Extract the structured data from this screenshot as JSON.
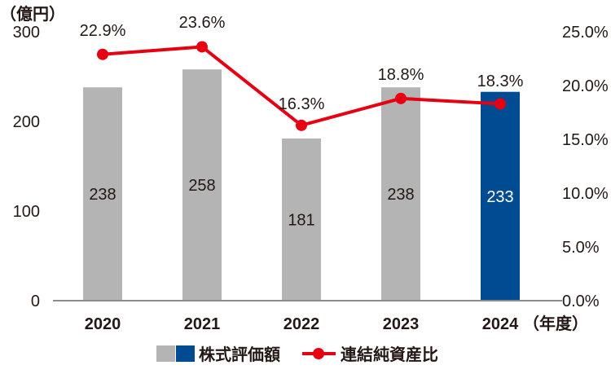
{
  "chart_data": {
    "type": "bar+line",
    "categories": [
      "2020",
      "2021",
      "2022",
      "2023",
      "2024"
    ],
    "series": [
      {
        "name": "株式評価額",
        "type": "bar",
        "axis": "left",
        "values": [
          238,
          258,
          181,
          238,
          233
        ],
        "colors": [
          "#b4b4b4",
          "#b4b4b4",
          "#b4b4b4",
          "#b4b4b4",
          "#004b91"
        ],
        "label_colors": [
          "#231815",
          "#231815",
          "#231815",
          "#231815",
          "#ffffff"
        ]
      },
      {
        "name": "連結純資産比",
        "type": "line",
        "axis": "right",
        "values": [
          22.9,
          23.6,
          16.3,
          18.8,
          18.3
        ],
        "labels": [
          "22.9%",
          "23.6%",
          "16.3%",
          "18.8%",
          "18.3%"
        ],
        "color": "#e60012"
      }
    ],
    "left_axis": {
      "unit_label": "（億円）",
      "ticks": [
        0,
        100,
        200,
        300
      ],
      "ylim": [
        0,
        300
      ]
    },
    "right_axis": {
      "ticks": [
        "0.0%",
        "5.0%",
        "10.0%",
        "15.0%",
        "20.0%",
        "25.0%"
      ],
      "ylim": [
        0,
        25
      ]
    },
    "x_axis": {
      "unit_label": "（年度）"
    },
    "legend": {
      "position": "bottom",
      "bar_label": "株式評価額",
      "line_label": "連結純資産比",
      "bar_swatch_colors": [
        "#b4b4b4",
        "#004b91"
      ]
    },
    "grid": false,
    "title": ""
  }
}
